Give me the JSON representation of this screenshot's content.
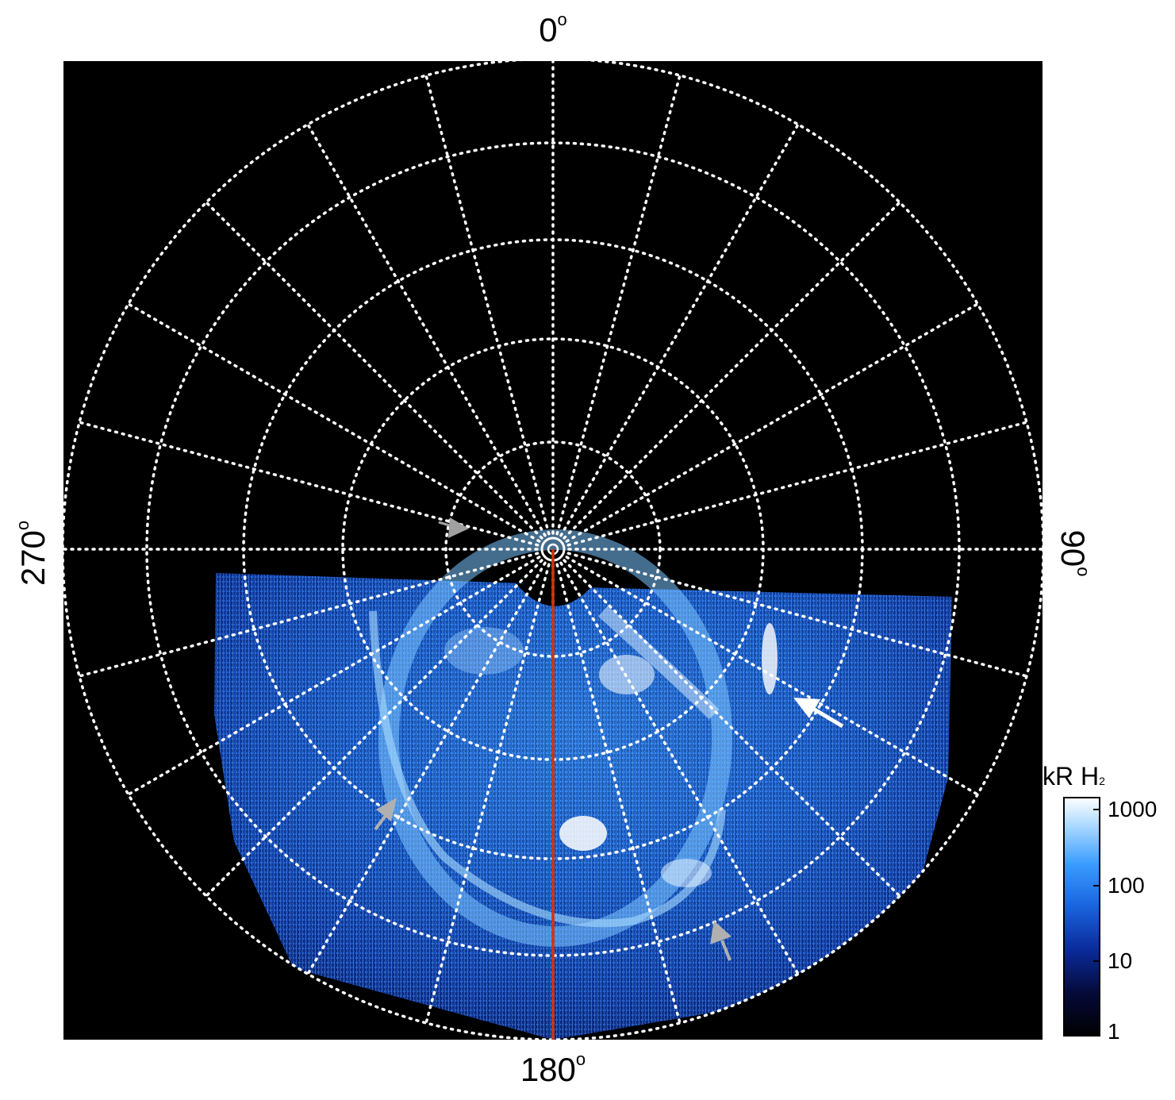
{
  "image": {
    "description_free": true,
    "background": "#000000",
    "grid_color": "#ffffff",
    "meridian_color": "#cc3311",
    "arrow_colors": {
      "white": "#ffffff",
      "grey": "#a0a0a0"
    }
  },
  "axis_labels": {
    "top": "0",
    "bottom": "180",
    "left": "270",
    "right": "90",
    "degree_mark": "o"
  },
  "colorbar": {
    "title_main": "kR H",
    "title_sub": "2",
    "ticks": [
      "1000",
      "100",
      "10",
      "1"
    ],
    "scale": "log",
    "range": [
      1,
      1000
    ],
    "colors": [
      "#000000",
      "#0a1e6a",
      "#1a5bd6",
      "#3aa0ff",
      "#bfe3ff",
      "#ffffff"
    ]
  }
}
